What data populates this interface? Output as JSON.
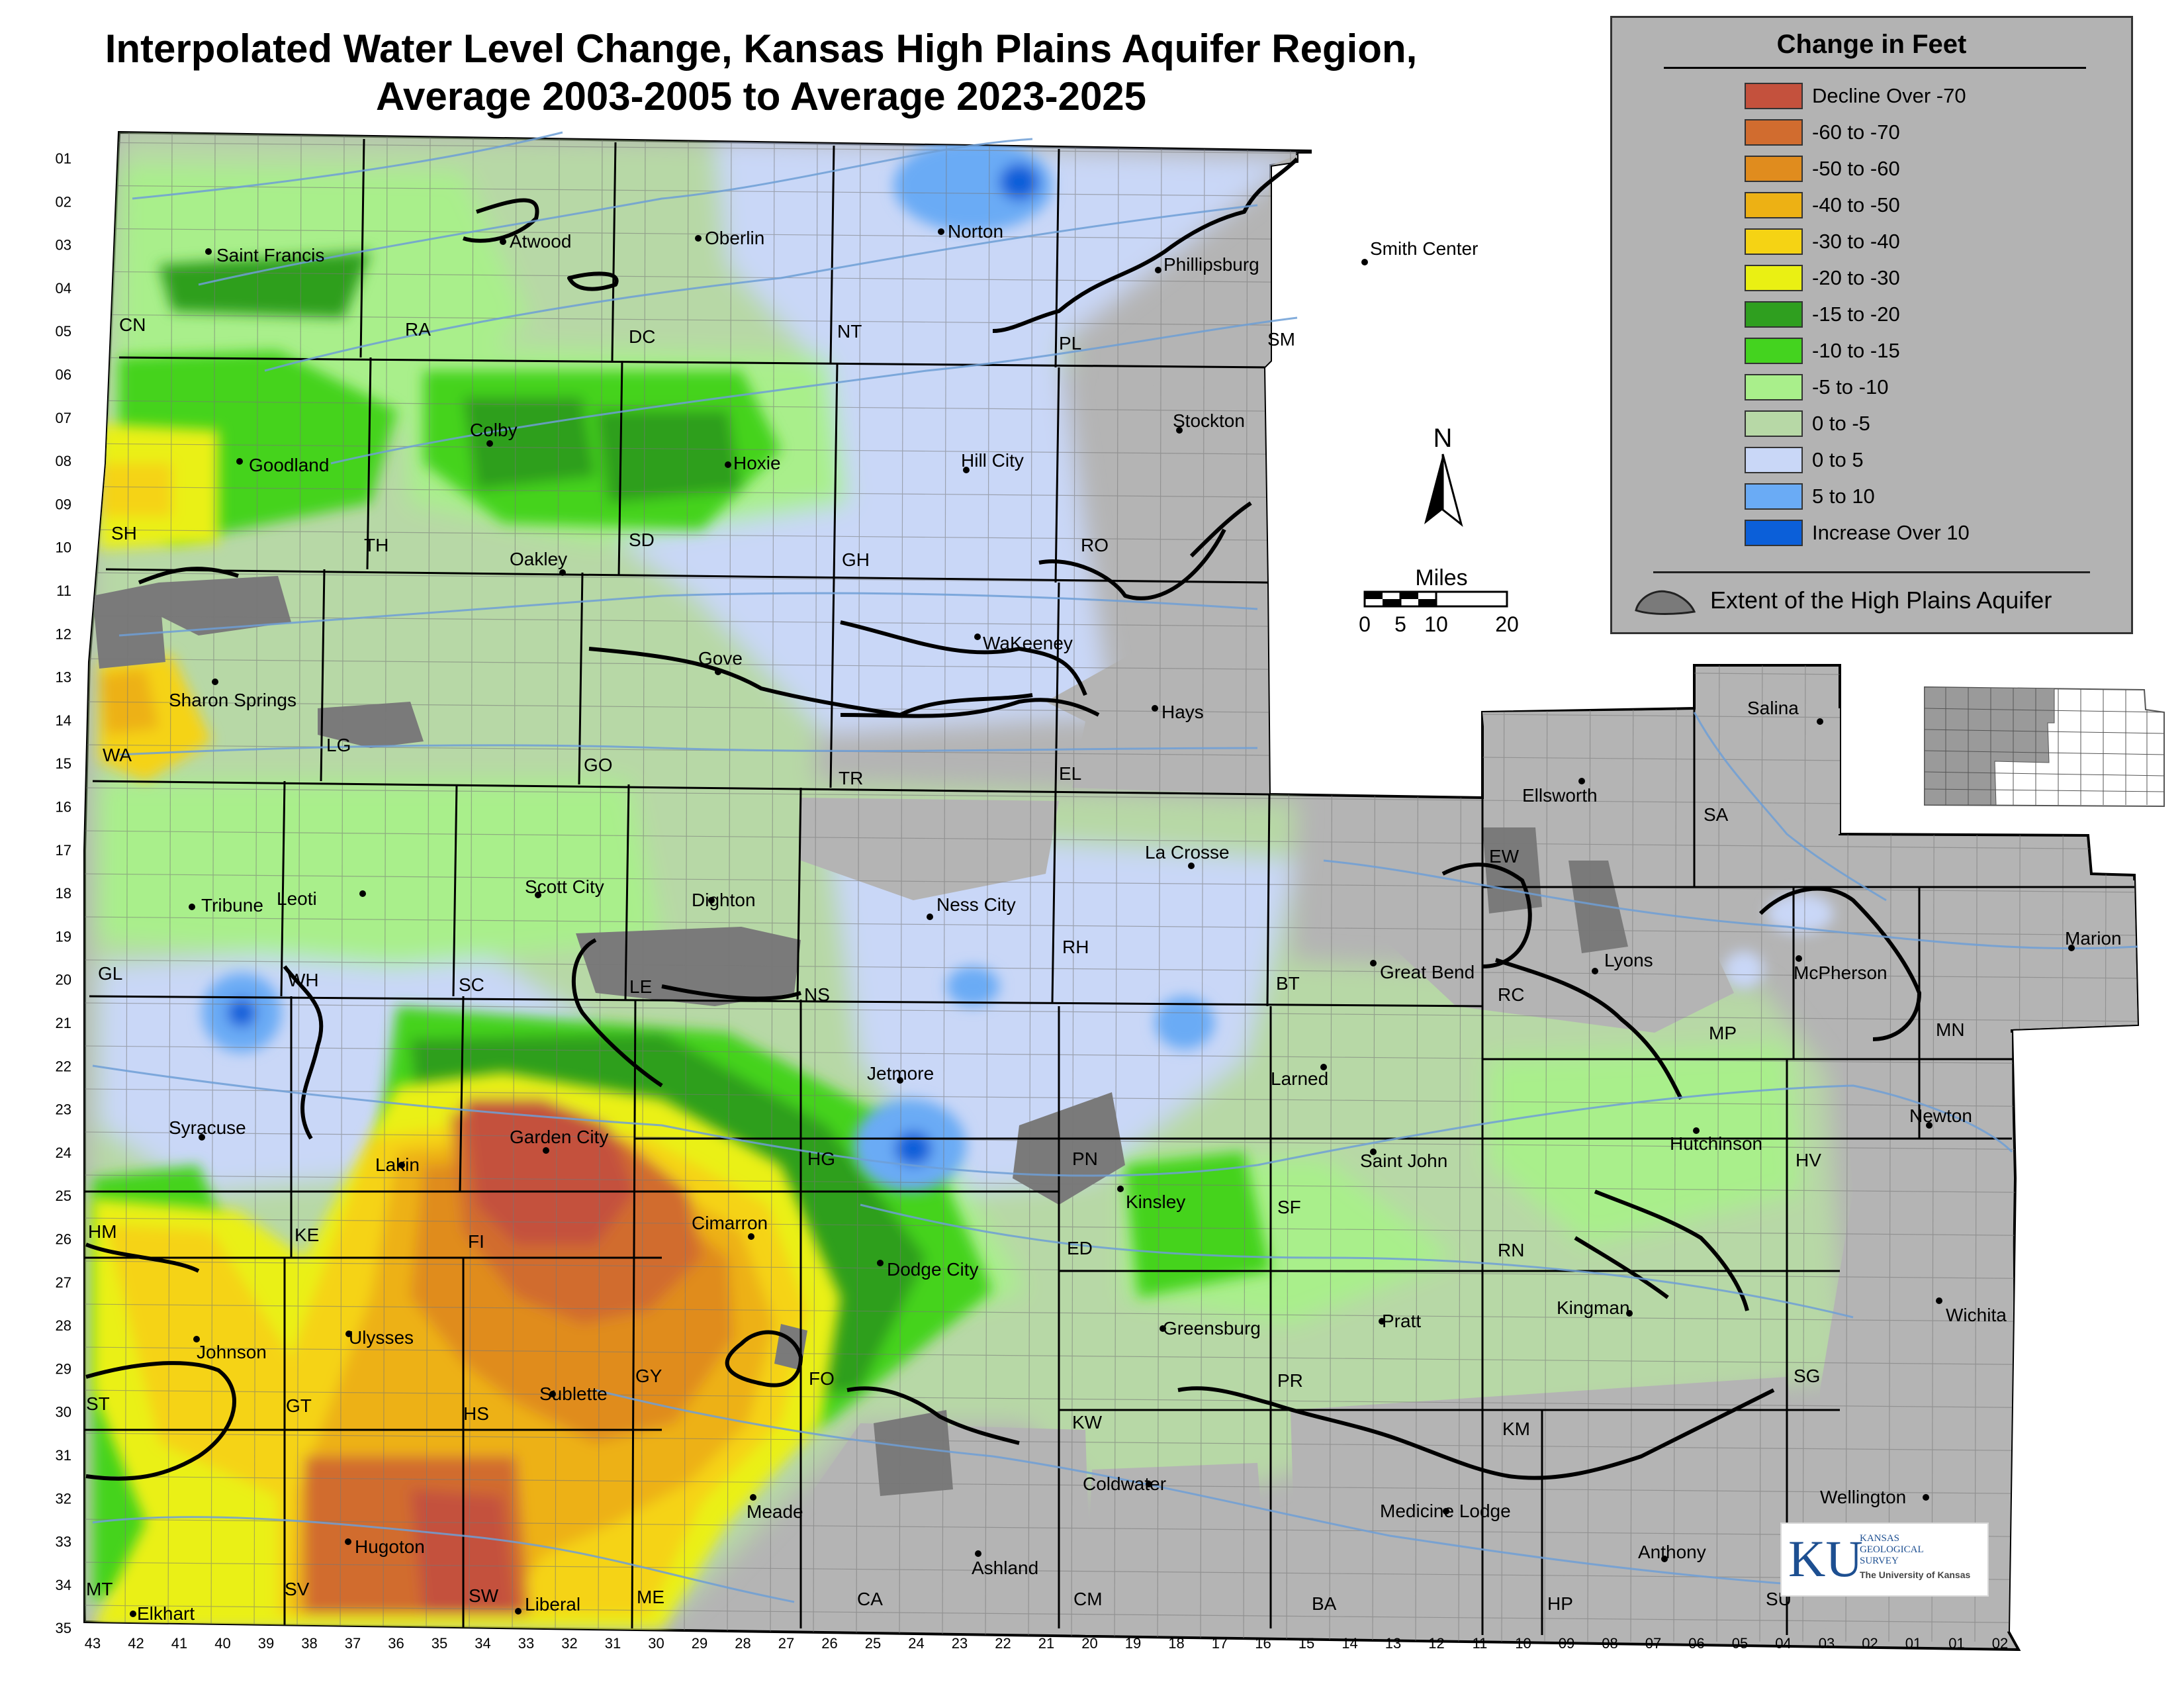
{
  "title": {
    "line1": "Interpolated Water Level Change, Kansas High Plains Aquifer Region,",
    "line2": "Average 2003-2005 to Average 2023-2025"
  },
  "legend": {
    "title": "Change in Feet",
    "items": [
      {
        "label": "Decline Over -70",
        "color": "#c4513d"
      },
      {
        "label": "-60 to -70",
        "color": "#d16c2f"
      },
      {
        "label": "-50 to -60",
        "color": "#e08c1e"
      },
      {
        "label": "-40 to -50",
        "color": "#edb114"
      },
      {
        "label": "-30 to -40",
        "color": "#f5d314"
      },
      {
        "label": "-20 to -30",
        "color": "#eaf013"
      },
      {
        "label": "-15 to -20",
        "color": "#2f9f1f"
      },
      {
        "label": "-10 to -15",
        "color": "#44d31f"
      },
      {
        "label": "-5 to -10",
        "color": "#a9ef8b"
      },
      {
        "label": "0 to -5",
        "color": "#b7d8a6"
      },
      {
        "label": "0 to 5",
        "color": "#c9d7f7"
      },
      {
        "label": "5 to 10",
        "color": "#6aabf5"
      },
      {
        "label": "Increase Over 10",
        "color": "#0b5fd9"
      }
    ],
    "extent_label": "Extent of the High Plains Aquifer",
    "extent_color": "#7a7a7a"
  },
  "north_arrow": {
    "label": "N"
  },
  "scale_bar": {
    "title": "Miles",
    "ticks": [
      "0",
      "5",
      "10",
      "20"
    ]
  },
  "logo": {
    "letters": "KU",
    "line1": "KANSAS",
    "line2": "GEOLOGICAL",
    "line3": "SURVEY",
    "line4": "The University of Kansas"
  },
  "township_labels": [
    "01",
    "02",
    "03",
    "04",
    "05",
    "06",
    "07",
    "08",
    "09",
    "10",
    "11",
    "12",
    "13",
    "14",
    "15",
    "16",
    "17",
    "18",
    "19",
    "20",
    "21",
    "22",
    "23",
    "24",
    "25",
    "26",
    "27",
    "28",
    "29",
    "30",
    "31",
    "32",
    "33",
    "34",
    "35"
  ],
  "range_labels": [
    "43",
    "42",
    "41",
    "40",
    "39",
    "38",
    "37",
    "36",
    "35",
    "34",
    "33",
    "32",
    "31",
    "30",
    "29",
    "28",
    "27",
    "26",
    "25",
    "24",
    "23",
    "22",
    "21",
    "20",
    "19",
    "18",
    "17",
    "16",
    "15",
    "14",
    "13",
    "12",
    "11",
    "10",
    "09",
    "08",
    "07",
    "06",
    "05",
    "04",
    "03",
    "02",
    "01",
    "01",
    "02"
  ],
  "cities": [
    {
      "name": "Saint Francis"
    },
    {
      "name": "Atwood"
    },
    {
      "name": "Oberlin"
    },
    {
      "name": "Norton"
    },
    {
      "name": "Phillipsburg"
    },
    {
      "name": "Smith Center"
    },
    {
      "name": "Goodland"
    },
    {
      "name": "Colby"
    },
    {
      "name": "Hoxie"
    },
    {
      "name": "Hill City"
    },
    {
      "name": "Stockton"
    },
    {
      "name": "Oakley"
    },
    {
      "name": "WaKeeney"
    },
    {
      "name": "Gove"
    },
    {
      "name": "Sharon Springs"
    },
    {
      "name": "Hays"
    },
    {
      "name": "Salina"
    },
    {
      "name": "Ellsworth"
    },
    {
      "name": "Tribune"
    },
    {
      "name": "Leoti"
    },
    {
      "name": "Scott City"
    },
    {
      "name": "Dighton"
    },
    {
      "name": "Ness City"
    },
    {
      "name": "La Crosse"
    },
    {
      "name": "Great Bend"
    },
    {
      "name": "Lyons"
    },
    {
      "name": "McPherson"
    },
    {
      "name": "Marion"
    },
    {
      "name": "Larned"
    },
    {
      "name": "Jetmore"
    },
    {
      "name": "Syracuse"
    },
    {
      "name": "Lakin"
    },
    {
      "name": "Garden City"
    },
    {
      "name": "Saint John"
    },
    {
      "name": "Hutchinson"
    },
    {
      "name": "Newton"
    },
    {
      "name": "Kinsley"
    },
    {
      "name": "Cimarron"
    },
    {
      "name": "Dodge City"
    },
    {
      "name": "Johnson"
    },
    {
      "name": "Ulysses"
    },
    {
      "name": "Greensburg"
    },
    {
      "name": "Pratt"
    },
    {
      "name": "Kingman"
    },
    {
      "name": "Wichita"
    },
    {
      "name": "Sublette"
    },
    {
      "name": "Coldwater"
    },
    {
      "name": "Meade"
    },
    {
      "name": "Medicine Lodge"
    },
    {
      "name": "Wellington"
    },
    {
      "name": "Hugoton"
    },
    {
      "name": "Ashland"
    },
    {
      "name": "Anthony"
    },
    {
      "name": "Liberal"
    },
    {
      "name": "Elkhart"
    }
  ],
  "county_codes": [
    "CN",
    "RA",
    "DC",
    "NT",
    "PL",
    "SM",
    "SH",
    "TH",
    "SD",
    "GH",
    "RO",
    "WA",
    "LG",
    "GO",
    "TR",
    "EL",
    "GL",
    "WH",
    "SC",
    "LE",
    "NS",
    "RH",
    "BT",
    "RC",
    "MP",
    "MN",
    "EW",
    "SA",
    "HM",
    "KE",
    "FI",
    "HG",
    "PN",
    "ED",
    "SF",
    "RN",
    "HV",
    "ST",
    "GT",
    "HS",
    "GY",
    "FO",
    "KW",
    "PR",
    "KM",
    "SG",
    "MT",
    "SV",
    "SW",
    "ME",
    "CA",
    "CM",
    "BA",
    "HP",
    "SU"
  ]
}
